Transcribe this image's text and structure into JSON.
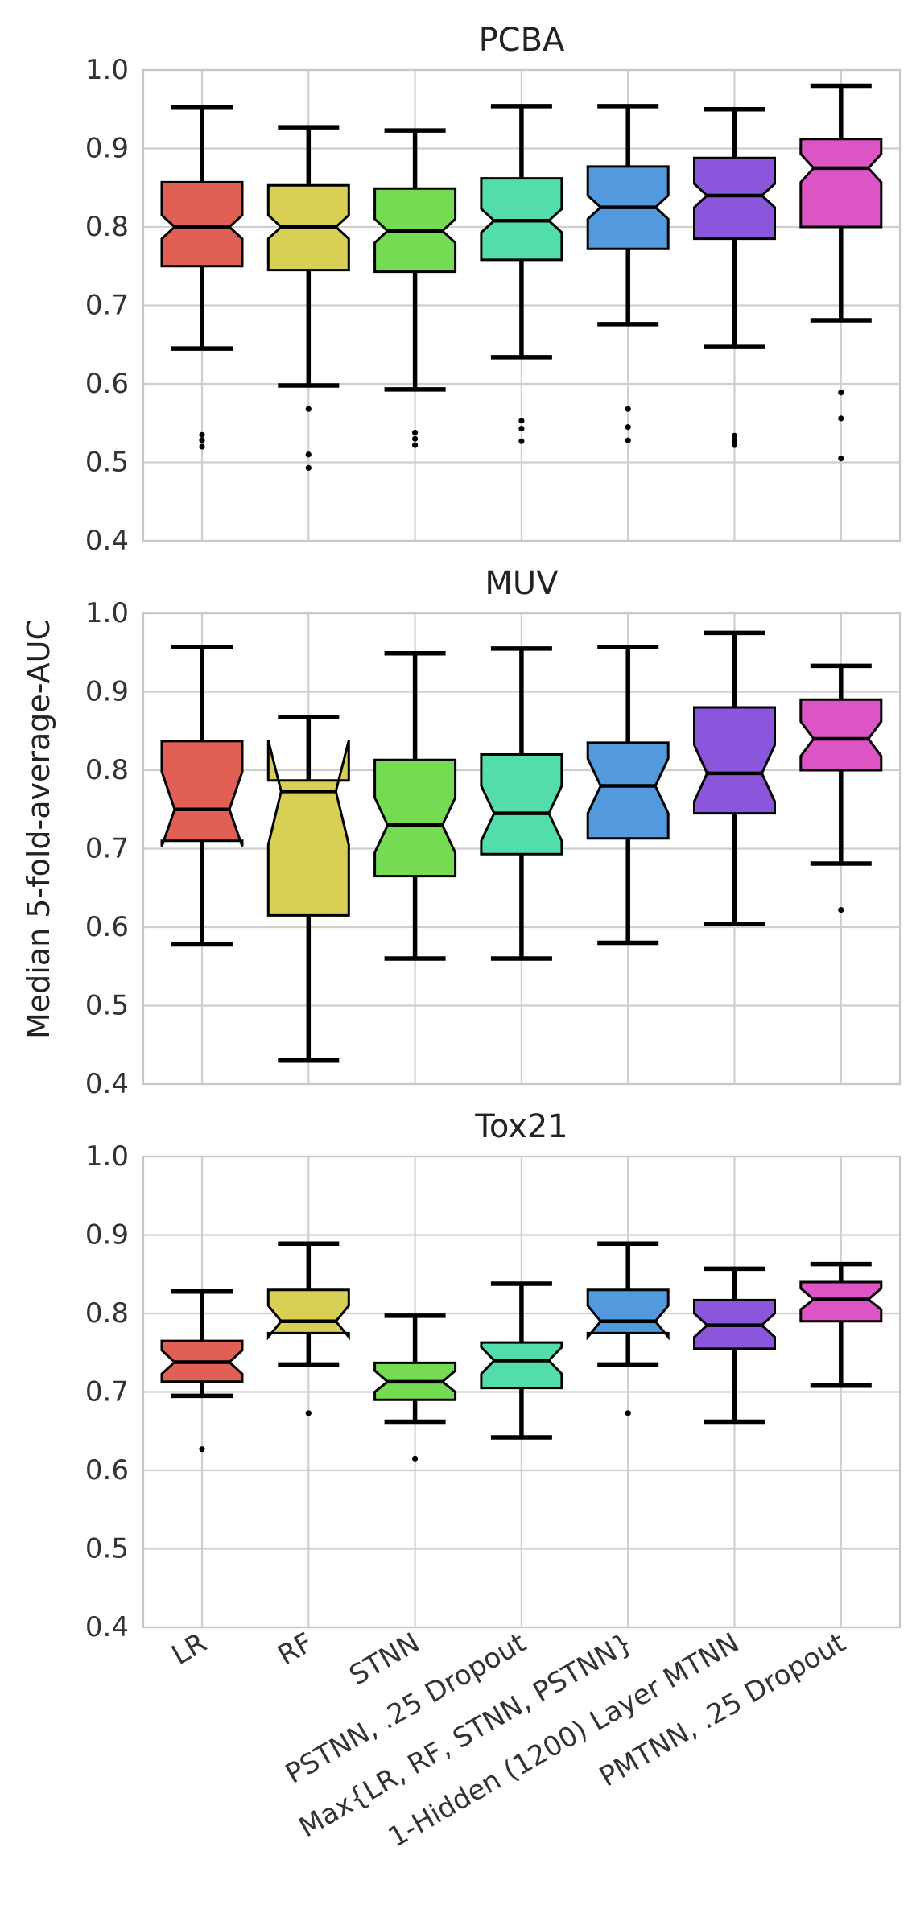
{
  "chart_data": [
    {
      "type": "boxplot",
      "title": "PCBA",
      "ylim": [
        0.4,
        1.0
      ],
      "yticks": [
        "1.0",
        "0.9",
        "0.8",
        "0.7",
        "0.6",
        "0.5",
        "0.4"
      ],
      "grid": true,
      "notched": true,
      "categories": [
        "LR",
        "RF",
        "STNN",
        "PSTNN, .25 Dropout",
        "Max{LR, RF, STNN, PSTNN}",
        "1-Hidden (1200) Layer MTNN",
        "PMTNN, .25 Dropout"
      ],
      "boxes": [
        {
          "whislo": 0.645,
          "q1": 0.75,
          "med": 0.8,
          "q3": 0.857,
          "whishi": 0.952,
          "notch_lo": 0.785,
          "notch_hi": 0.815,
          "fliers": [
            0.52,
            0.528,
            0.535
          ]
        },
        {
          "whislo": 0.598,
          "q1": 0.745,
          "med": 0.8,
          "q3": 0.853,
          "whishi": 0.927,
          "notch_lo": 0.785,
          "notch_hi": 0.815,
          "fliers": [
            0.493,
            0.51,
            0.568
          ]
        },
        {
          "whislo": 0.593,
          "q1": 0.743,
          "med": 0.795,
          "q3": 0.849,
          "whishi": 0.923,
          "notch_lo": 0.78,
          "notch_hi": 0.81,
          "fliers": [
            0.522,
            0.53,
            0.538
          ]
        },
        {
          "whislo": 0.634,
          "q1": 0.758,
          "med": 0.808,
          "q3": 0.862,
          "whishi": 0.954,
          "notch_lo": 0.793,
          "notch_hi": 0.823,
          "fliers": [
            0.527,
            0.543,
            0.553
          ]
        },
        {
          "whislo": 0.676,
          "q1": 0.772,
          "med": 0.825,
          "q3": 0.877,
          "whishi": 0.954,
          "notch_lo": 0.81,
          "notch_hi": 0.84,
          "fliers": [
            0.528,
            0.545,
            0.568
          ]
        },
        {
          "whislo": 0.647,
          "q1": 0.785,
          "med": 0.84,
          "q3": 0.888,
          "whishi": 0.95,
          "notch_lo": 0.825,
          "notch_hi": 0.855,
          "fliers": [
            0.522,
            0.528,
            0.534
          ]
        },
        {
          "whislo": 0.681,
          "q1": 0.8,
          "med": 0.875,
          "q3": 0.912,
          "whishi": 0.98,
          "notch_lo": 0.857,
          "notch_hi": 0.893,
          "fliers": [
            0.505,
            0.556,
            0.589
          ]
        }
      ]
    },
    {
      "type": "boxplot",
      "title": "MUV",
      "ylim": [
        0.4,
        1.0
      ],
      "yticks": [
        "1.0",
        "0.9",
        "0.8",
        "0.7",
        "0.6",
        "0.5",
        "0.4"
      ],
      "grid": true,
      "notched": true,
      "categories": [
        "LR",
        "RF",
        "STNN",
        "PSTNN, .25 Dropout",
        "Max{LR, RF, STNN, PSTNN}",
        "1-Hidden (1200) Layer MTNN",
        "PMTNN, .25 Dropout"
      ],
      "boxes": [
        {
          "whislo": 0.578,
          "q1": 0.71,
          "med": 0.75,
          "q3": 0.837,
          "whishi": 0.957,
          "notch_lo": 0.703,
          "notch_hi": 0.798,
          "fliers": []
        },
        {
          "whislo": 0.43,
          "q1": 0.615,
          "med": 0.773,
          "q3": 0.787,
          "whishi": 0.868,
          "notch_lo": 0.705,
          "notch_hi": 0.838,
          "fliers": []
        },
        {
          "whislo": 0.56,
          "q1": 0.665,
          "med": 0.73,
          "q3": 0.813,
          "whishi": 0.949,
          "notch_lo": 0.695,
          "notch_hi": 0.765,
          "fliers": []
        },
        {
          "whislo": 0.56,
          "q1": 0.693,
          "med": 0.745,
          "q3": 0.82,
          "whishi": 0.955,
          "notch_lo": 0.71,
          "notch_hi": 0.78,
          "fliers": []
        },
        {
          "whislo": 0.58,
          "q1": 0.713,
          "med": 0.78,
          "q3": 0.835,
          "whishi": 0.957,
          "notch_lo": 0.745,
          "notch_hi": 0.815,
          "fliers": []
        },
        {
          "whislo": 0.604,
          "q1": 0.745,
          "med": 0.796,
          "q3": 0.88,
          "whishi": 0.975,
          "notch_lo": 0.76,
          "notch_hi": 0.832,
          "fliers": []
        },
        {
          "whislo": 0.681,
          "q1": 0.8,
          "med": 0.84,
          "q3": 0.89,
          "whishi": 0.933,
          "notch_lo": 0.818,
          "notch_hi": 0.862,
          "fliers": [
            0.622
          ]
        }
      ]
    },
    {
      "type": "boxplot",
      "title": "Tox21",
      "ylim": [
        0.4,
        1.0
      ],
      "yticks": [
        "1.0",
        "0.9",
        "0.8",
        "0.7",
        "0.6",
        "0.5",
        "0.4"
      ],
      "grid": true,
      "notched": true,
      "categories": [
        "LR",
        "RF",
        "STNN",
        "PSTNN, .25 Dropout",
        "Max{LR, RF, STNN, PSTNN}",
        "1-Hidden (1200) Layer MTNN",
        "PMTNN, .25 Dropout"
      ],
      "boxes": [
        {
          "whislo": 0.695,
          "q1": 0.713,
          "med": 0.738,
          "q3": 0.765,
          "whishi": 0.828,
          "notch_lo": 0.723,
          "notch_hi": 0.753,
          "fliers": [
            0.627
          ]
        },
        {
          "whislo": 0.735,
          "q1": 0.775,
          "med": 0.79,
          "q3": 0.83,
          "whishi": 0.889,
          "notch_lo": 0.77,
          "notch_hi": 0.81,
          "fliers": [
            0.673
          ]
        },
        {
          "whislo": 0.662,
          "q1": 0.69,
          "med": 0.713,
          "q3": 0.737,
          "whishi": 0.797,
          "notch_lo": 0.7,
          "notch_hi": 0.727,
          "fliers": [
            0.615
          ]
        },
        {
          "whislo": 0.642,
          "q1": 0.705,
          "med": 0.74,
          "q3": 0.763,
          "whishi": 0.838,
          "notch_lo": 0.723,
          "notch_hi": 0.757,
          "fliers": []
        },
        {
          "whislo": 0.735,
          "q1": 0.775,
          "med": 0.79,
          "q3": 0.83,
          "whishi": 0.889,
          "notch_lo": 0.77,
          "notch_hi": 0.81,
          "fliers": [
            0.673
          ]
        },
        {
          "whislo": 0.662,
          "q1": 0.755,
          "med": 0.785,
          "q3": 0.817,
          "whishi": 0.857,
          "notch_lo": 0.77,
          "notch_hi": 0.8,
          "fliers": []
        },
        {
          "whislo": 0.708,
          "q1": 0.79,
          "med": 0.818,
          "q3": 0.84,
          "whishi": 0.863,
          "notch_lo": 0.805,
          "notch_hi": 0.832,
          "fliers": []
        }
      ]
    }
  ],
  "ylabel": "Median 5-fold-average-AUC",
  "colors": [
    "#e06055",
    "#d8d055",
    "#74db52",
    "#52ddaa",
    "#5299dd",
    "#8a56db",
    "#dd55c4"
  ]
}
